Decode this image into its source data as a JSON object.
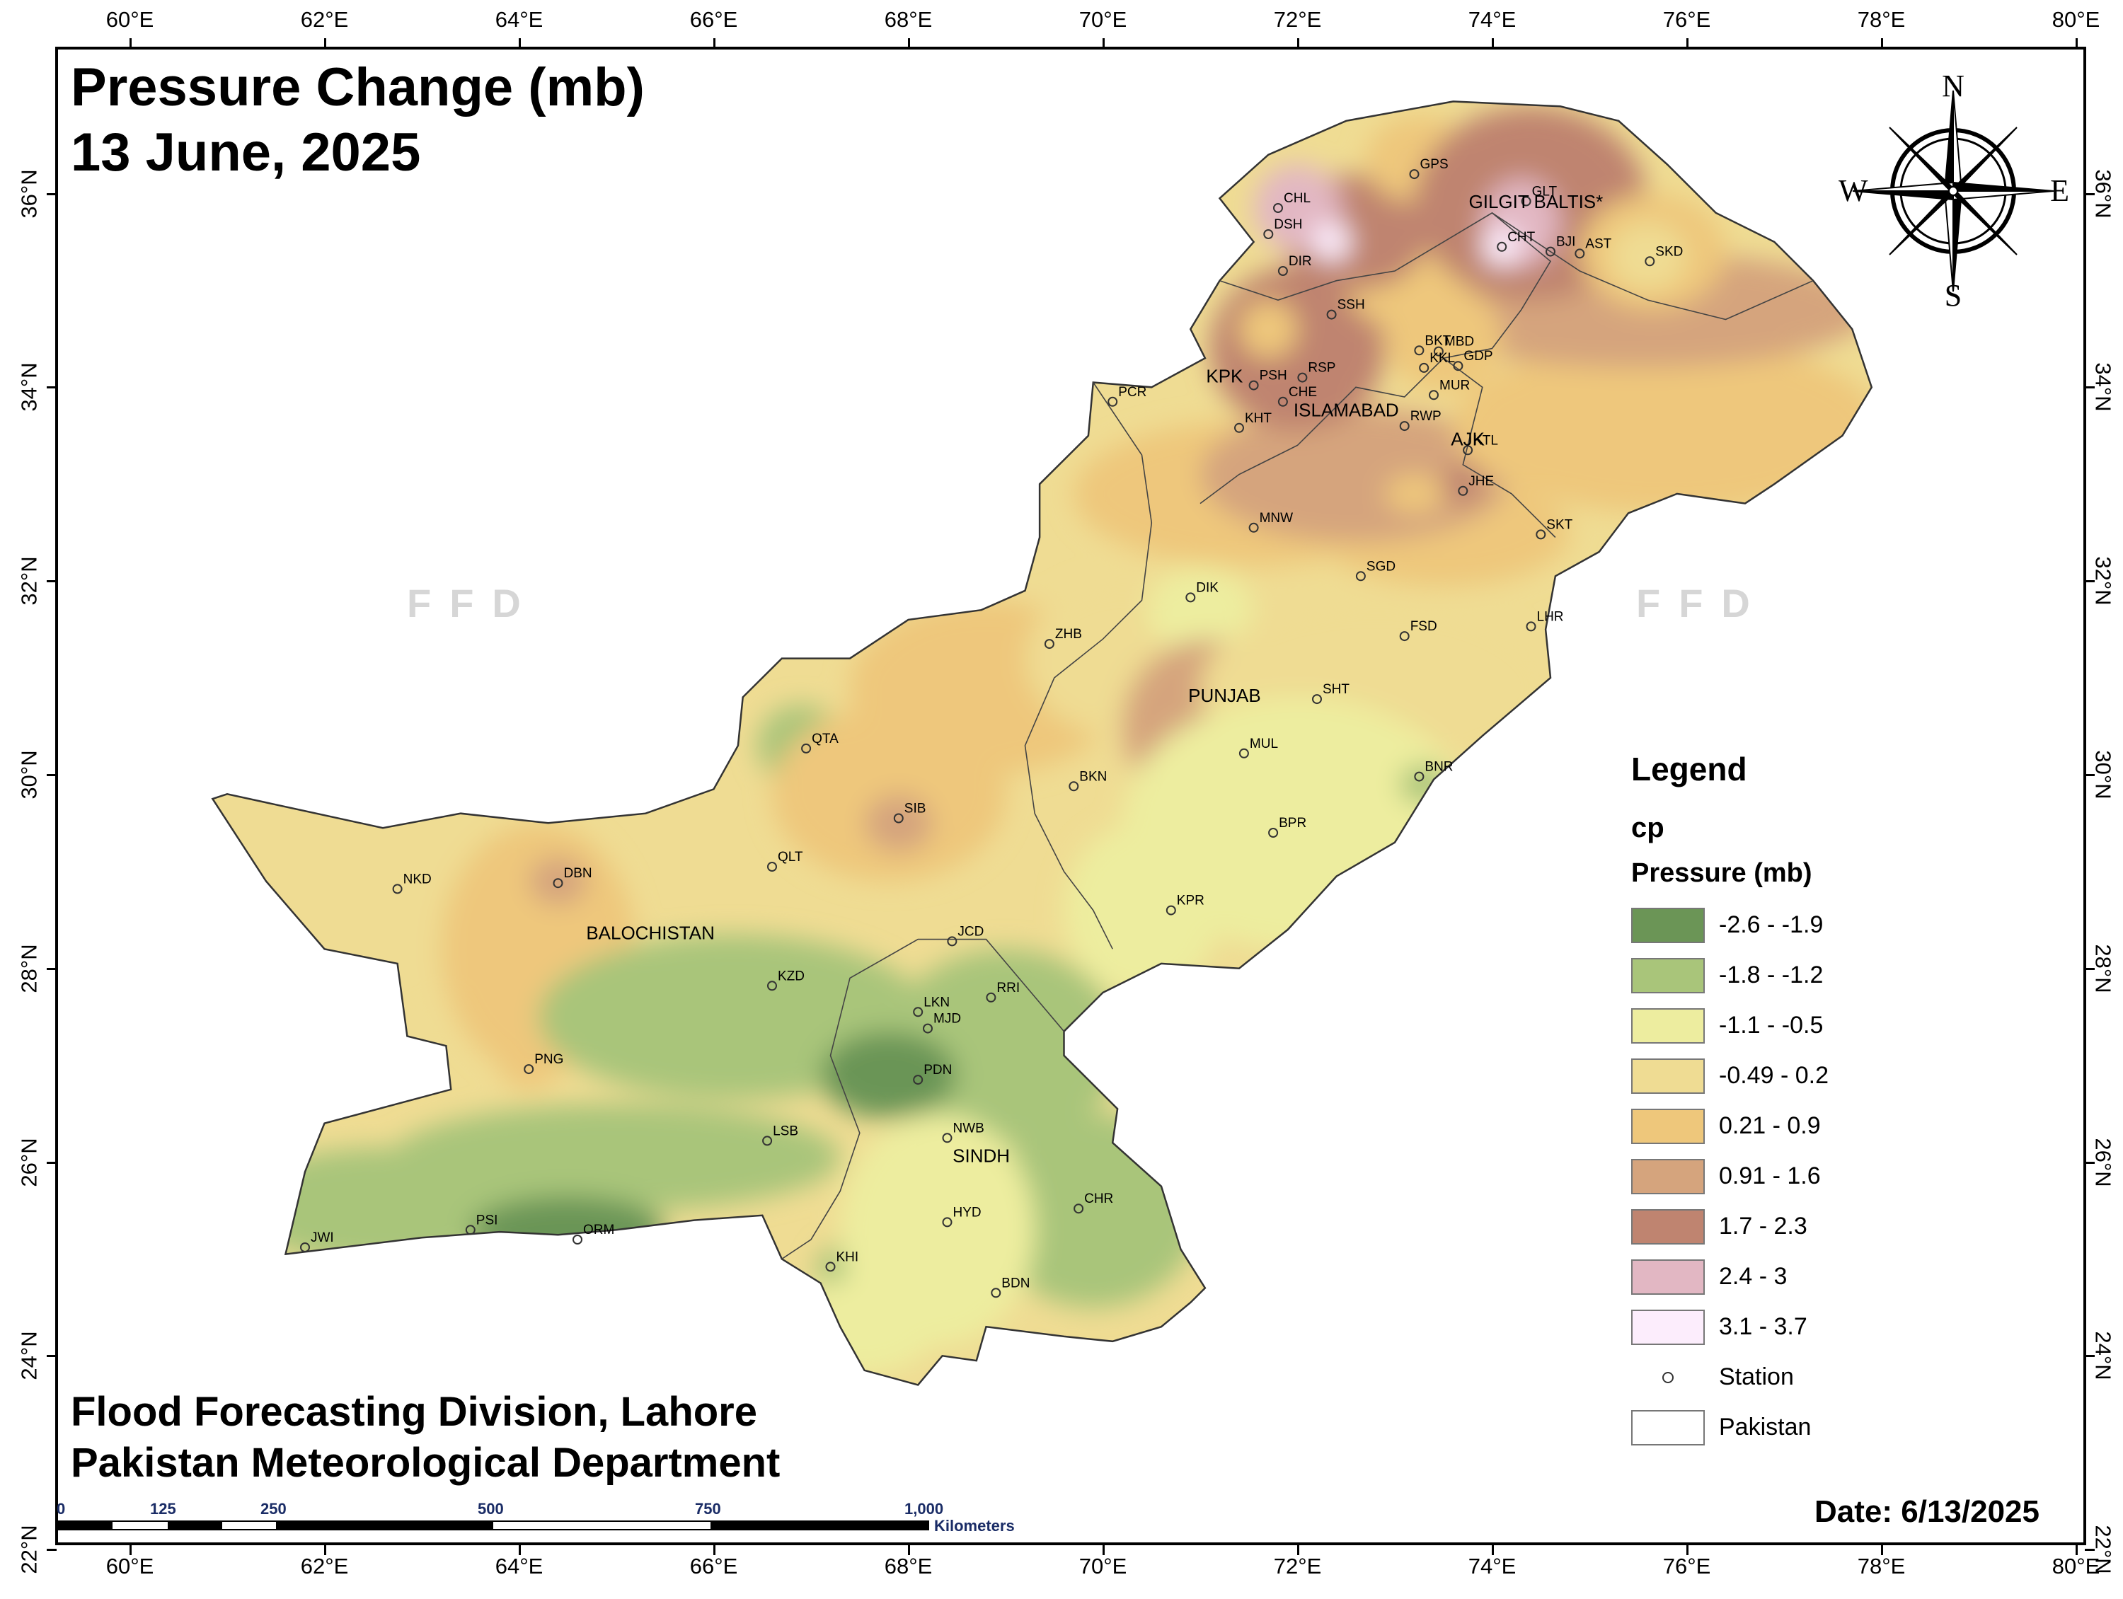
{
  "title": {
    "line1": "Pressure Change (mb)",
    "line2": "13 June, 2025"
  },
  "credits": {
    "line1": "Flood Forecasting Division, Lahore",
    "line2": "Pakistan Meteorological Department"
  },
  "date_label": "Date: 6/13/2025",
  "watermark": "FFD",
  "longitude_ticks": [
    "60°E",
    "62°E",
    "64°E",
    "66°E",
    "68°E",
    "70°E",
    "72°E",
    "74°E",
    "76°E",
    "78°E",
    "80°E"
  ],
  "latitude_ticks": [
    "36°N",
    "34°N",
    "32°N",
    "30°N",
    "28°N",
    "26°N",
    "24°N",
    "22°N"
  ],
  "legend": {
    "title": "Legend",
    "layer": "cp",
    "field": "Pressure (mb)",
    "classes": [
      {
        "label": "-2.6 - -1.9",
        "color": "#6b9556"
      },
      {
        "label": "-1.8 - -1.2",
        "color": "#a9c57a"
      },
      {
        "label": "-1.1 - -0.5",
        "color": "#eded9f"
      },
      {
        "label": "-0.49 - 0.2",
        "color": "#efdc93"
      },
      {
        "label": "0.21 - 0.9",
        "color": "#eec77b"
      },
      {
        "label": "0.91 - 1.6",
        "color": "#d5a47d"
      },
      {
        "label": "1.7 - 2.3",
        "color": "#bf8470"
      },
      {
        "label": "2.4 - 3",
        "color": "#e2b7c3"
      },
      {
        "label": "3.1 - 3.7",
        "color": "#fcedfc"
      }
    ],
    "station_label": "Station",
    "boundary_label": "Pakistan"
  },
  "compass": {
    "n": "N",
    "s": "S",
    "e": "E",
    "w": "W"
  },
  "scale_bar": {
    "numbers": [
      "0",
      "125",
      "250",
      "500",
      "750",
      "1,000"
    ],
    "unit": "Kilometers"
  },
  "provinces": [
    {
      "name": "GILGIT BALTIS*",
      "lon": 74.45,
      "lat": 35.85
    },
    {
      "name": "KPK",
      "lon": 71.25,
      "lat": 34.05
    },
    {
      "name": "ISLAMABAD",
      "lon": 72.5,
      "lat": 33.7
    },
    {
      "name": "AJK",
      "lon": 73.75,
      "lat": 33.4
    },
    {
      "name": "PUNJAB",
      "lon": 71.25,
      "lat": 30.75
    },
    {
      "name": "BALOCHISTAN",
      "lon": 65.35,
      "lat": 28.3
    },
    {
      "name": "SINDH",
      "lon": 68.75,
      "lat": 26.0
    }
  ],
  "stations": [
    {
      "id": "GPS",
      "lon": 73.2,
      "lat": 36.2
    },
    {
      "id": "CHL",
      "lon": 71.8,
      "lat": 35.85
    },
    {
      "id": "GLT",
      "lon": 74.35,
      "lat": 35.92
    },
    {
      "id": "DSH",
      "lon": 71.7,
      "lat": 35.58
    },
    {
      "id": "CHT",
      "lon": 74.1,
      "lat": 35.45
    },
    {
      "id": "BJI",
      "lon": 74.6,
      "lat": 35.4
    },
    {
      "id": "AST",
      "lon": 74.9,
      "lat": 35.38
    },
    {
      "id": "SKD",
      "lon": 75.62,
      "lat": 35.3
    },
    {
      "id": "DIR",
      "lon": 71.85,
      "lat": 35.2
    },
    {
      "id": "SSH",
      "lon": 72.35,
      "lat": 34.75
    },
    {
      "id": "BKT",
      "lon": 73.25,
      "lat": 34.38
    },
    {
      "id": "MBD",
      "lon": 73.45,
      "lat": 34.37
    },
    {
      "id": "KKL",
      "lon": 73.3,
      "lat": 34.2
    },
    {
      "id": "GDP",
      "lon": 73.65,
      "lat": 34.22
    },
    {
      "id": "RSP",
      "lon": 72.05,
      "lat": 34.1
    },
    {
      "id": "PSH",
      "lon": 71.55,
      "lat": 34.02
    },
    {
      "id": "MUR",
      "lon": 73.4,
      "lat": 33.92
    },
    {
      "id": "PCR",
      "lon": 70.1,
      "lat": 33.85
    },
    {
      "id": "CHE",
      "lon": 71.85,
      "lat": 33.85
    },
    {
      "id": "RWP",
      "lon": 73.1,
      "lat": 33.6
    },
    {
      "id": "KHT",
      "lon": 71.4,
      "lat": 33.58
    },
    {
      "id": "KTL",
      "lon": 73.75,
      "lat": 33.35
    },
    {
      "id": "JHE",
      "lon": 73.7,
      "lat": 32.93
    },
    {
      "id": "MNW",
      "lon": 71.55,
      "lat": 32.55
    },
    {
      "id": "SKT",
      "lon": 74.5,
      "lat": 32.48
    },
    {
      "id": "SGD",
      "lon": 72.65,
      "lat": 32.05
    },
    {
      "id": "DIK",
      "lon": 70.9,
      "lat": 31.83
    },
    {
      "id": "LHR",
      "lon": 74.4,
      "lat": 31.53
    },
    {
      "id": "FSD",
      "lon": 73.1,
      "lat": 31.43
    },
    {
      "id": "ZHB",
      "lon": 69.45,
      "lat": 31.35
    },
    {
      "id": "SHT",
      "lon": 72.2,
      "lat": 30.78
    },
    {
      "id": "QTA",
      "lon": 66.95,
      "lat": 30.27
    },
    {
      "id": "MUL",
      "lon": 71.45,
      "lat": 30.22
    },
    {
      "id": "BNR",
      "lon": 73.25,
      "lat": 29.98
    },
    {
      "id": "BKN",
      "lon": 69.7,
      "lat": 29.88
    },
    {
      "id": "SIB",
      "lon": 67.9,
      "lat": 29.55
    },
    {
      "id": "BPR",
      "lon": 71.75,
      "lat": 29.4
    },
    {
      "id": "QLT",
      "lon": 66.6,
      "lat": 29.05
    },
    {
      "id": "DBN",
      "lon": 64.4,
      "lat": 28.88
    },
    {
      "id": "NKD",
      "lon": 62.75,
      "lat": 28.82
    },
    {
      "id": "KPR",
      "lon": 70.7,
      "lat": 28.6
    },
    {
      "id": "JCD",
      "lon": 68.45,
      "lat": 28.28
    },
    {
      "id": "KZD",
      "lon": 66.6,
      "lat": 27.82
    },
    {
      "id": "RRI",
      "lon": 68.85,
      "lat": 27.7
    },
    {
      "id": "LKN",
      "lon": 68.1,
      "lat": 27.55
    },
    {
      "id": "MJD",
      "lon": 68.2,
      "lat": 27.38
    },
    {
      "id": "PNG",
      "lon": 64.1,
      "lat": 26.96
    },
    {
      "id": "PDN",
      "lon": 68.1,
      "lat": 26.85
    },
    {
      "id": "LSB",
      "lon": 66.55,
      "lat": 26.22
    },
    {
      "id": "NWB",
      "lon": 68.4,
      "lat": 26.25
    },
    {
      "id": "CHR",
      "lon": 69.75,
      "lat": 25.52
    },
    {
      "id": "HYD",
      "lon": 68.4,
      "lat": 25.38
    },
    {
      "id": "PSI",
      "lon": 63.5,
      "lat": 25.3
    },
    {
      "id": "ORM",
      "lon": 64.6,
      "lat": 25.2
    },
    {
      "id": "JWI",
      "lon": 61.8,
      "lat": 25.12
    },
    {
      "id": "KHI",
      "lon": 67.2,
      "lat": 24.92
    },
    {
      "id": "BDN",
      "lon": 68.9,
      "lat": 24.65
    }
  ]
}
